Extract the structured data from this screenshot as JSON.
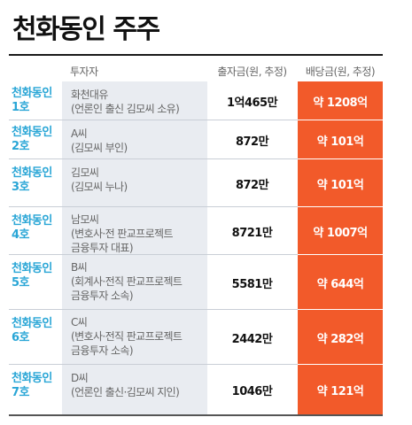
{
  "title": "천화동인 주주",
  "headers": {
    "investor": "투자자",
    "investment": "출자금(원, 추정)",
    "dividend": "배당금(원, 추정)"
  },
  "rows": [
    {
      "label": [
        "천화동인",
        "1호"
      ],
      "investor": [
        "화천대유",
        "(언론인 출신 김모씨 소유)"
      ],
      "investment": "1억465만",
      "dividend": "약 1208억"
    },
    {
      "label": [
        "천화동인",
        "2호"
      ],
      "investor": [
        "A씨",
        "(김모씨 부인)"
      ],
      "investment": "872만",
      "dividend": "약 101억"
    },
    {
      "label": [
        "천화동인",
        "3호"
      ],
      "investor": [
        "김모씨",
        "(김모씨 누나)"
      ],
      "investment": "872만",
      "dividend": "약 101억"
    },
    {
      "label": [
        "천화동인",
        "4호"
      ],
      "investor": [
        "남모씨",
        "(변호사·전 판교프로젝트",
        "금융투자 대표)"
      ],
      "investment": "8721만",
      "dividend": "약 1007억"
    },
    {
      "label": [
        "천화동인",
        "5호"
      ],
      "investor": [
        "B씨",
        "(회계사·전직 판교프로젝트",
        "금융투자 소속)"
      ],
      "investment": "5581만",
      "dividend": "약 644억"
    },
    {
      "label": [
        "천화동인",
        "6호"
      ],
      "investor": [
        "C씨",
        "(변호사·전직 판교프로젝트",
        "금융투자 소속)"
      ],
      "investment": "2442만",
      "dividend": "약 282억"
    },
    {
      "label": [
        "천화동인",
        "7호"
      ],
      "investor": [
        "D씨",
        "(언론인 출신·김모씨 지인)"
      ],
      "investment": "1046만",
      "dividend": "약 121억"
    }
  ]
}
